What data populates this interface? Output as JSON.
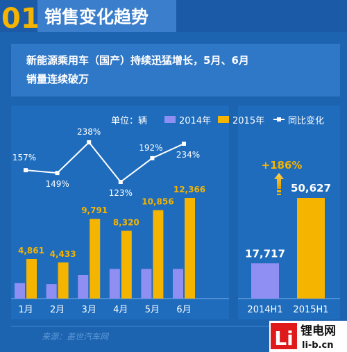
{
  "header": {
    "number": "01",
    "title": "销售变化趋势"
  },
  "subtitle": {
    "line1": "新能源乘用车（国产）持续迅猛增长，5月、6月",
    "line2": "销量连续破万"
  },
  "legend": {
    "unit": "单位：辆",
    "item1": "2014年",
    "item2": "2015年",
    "item3": "同比变化"
  },
  "source": "来源：盖世汽车网",
  "watermark": {
    "big": "Li",
    "line1": "锂电网",
    "line2": "li-b.cn"
  },
  "colors": {
    "background": "#1c63b0",
    "series_2014": "#8f8ff3",
    "series_2015": "#f5b400",
    "line": "#ffffff",
    "header_accent": "#f5b400"
  },
  "chart_data": [
    {
      "type": "bar",
      "categories": [
        "1月",
        "2月",
        "3月",
        "4月",
        "5月",
        "6月"
      ],
      "series": [
        {
          "name": "2014年",
          "values": [
            null,
            null,
            null,
            null,
            null,
            null
          ]
        },
        {
          "name": "2015年",
          "values": [
            4861,
            4433,
            9791,
            8320,
            10856,
            12366
          ]
        },
        {
          "name": "同比变化",
          "type": "line",
          "values": [
            157,
            149,
            238,
            123,
            192,
            234
          ]
        }
      ],
      "data_labels": {
        "2015年": [
          "4,861",
          "4,433",
          "9,791",
          "8,320",
          "10,856",
          "12,366"
        ],
        "同比变化": [
          "157%",
          "149%",
          "238%",
          "123%",
          "192%",
          "234%"
        ]
      },
      "series_2014_estimated": [
        1890,
        1780,
        2900,
        3640,
        3640,
        3640
      ]
    },
    {
      "type": "bar",
      "categories": [
        "2014H1",
        "2015H1"
      ],
      "values": [
        17717,
        50627
      ],
      "data_labels": [
        "17,717",
        "50,627"
      ],
      "annotation": "+186%"
    }
  ]
}
